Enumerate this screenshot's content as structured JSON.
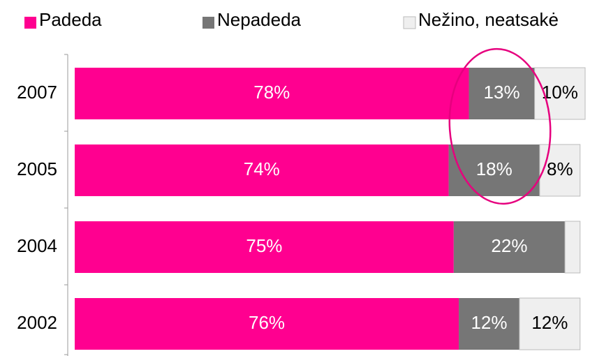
{
  "chart_data": {
    "type": "stacked-bar-horizontal",
    "categories": [
      "2007",
      "2005",
      "2004",
      "2002"
    ],
    "series": [
      {
        "name": "Padeda",
        "color": "#ff0090",
        "values": [
          78,
          74,
          75,
          76
        ],
        "value_labels": [
          "78%",
          "74%",
          "75%",
          "76%"
        ]
      },
      {
        "name": "Nepadeda",
        "color": "#767676",
        "values": [
          13,
          18,
          22,
          12
        ],
        "value_labels": [
          "13%",
          "18%",
          "22%",
          "12%"
        ]
      },
      {
        "name": "Nežino, neatsakė",
        "color": "#efefef",
        "values": [
          10,
          8,
          3,
          12
        ],
        "value_labels": [
          "10%",
          "8%",
          null,
          "12%"
        ]
      }
    ]
  }
}
